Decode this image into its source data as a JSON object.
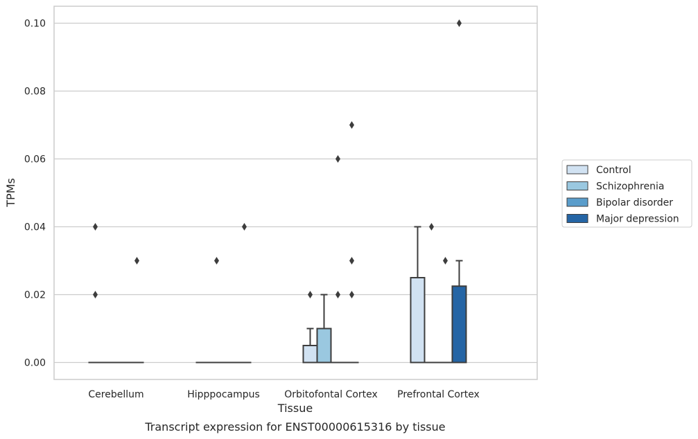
{
  "chart_data": {
    "type": "box",
    "title": "",
    "caption": "Transcript expression for ENST00000615316 by tissue",
    "xlabel": "Tissue",
    "ylabel": "TPMs",
    "ylim": [
      -0.005,
      0.105
    ],
    "yticks": [
      "0.00",
      "0.02",
      "0.04",
      "0.06",
      "0.08",
      "0.10"
    ],
    "ytick_values": [
      0,
      0.02,
      0.04,
      0.06,
      0.08,
      0.1
    ],
    "grid": true,
    "legend_position": "right",
    "categories": [
      "Cerebellum",
      "Hipppocampus",
      "Orbitofontal Cortex",
      "Prefrontal Cortex"
    ],
    "series": [
      {
        "name": "Control",
        "color": "#d1e2f2",
        "boxes": [
          {
            "q1": 0,
            "median": 0,
            "q3": 0,
            "whisker_low": 0,
            "whisker_high": 0,
            "outliers": [
              0.02,
              0.04
            ]
          },
          {
            "q1": 0,
            "median": 0,
            "q3": 0,
            "whisker_low": 0,
            "whisker_high": 0,
            "outliers": []
          },
          {
            "q1": 0,
            "median": 0,
            "q3": 0.005,
            "whisker_low": 0,
            "whisker_high": 0.01,
            "outliers": [
              0.02
            ]
          },
          {
            "q1": 0,
            "median": 0,
            "q3": 0.025,
            "whisker_low": 0,
            "whisker_high": 0.04,
            "outliers": []
          }
        ]
      },
      {
        "name": "Schizophrenia",
        "color": "#9ac8e0",
        "boxes": [
          {
            "q1": 0,
            "median": 0,
            "q3": 0,
            "whisker_low": 0,
            "whisker_high": 0,
            "outliers": []
          },
          {
            "q1": 0,
            "median": 0,
            "q3": 0,
            "whisker_low": 0,
            "whisker_high": 0,
            "outliers": [
              0.03
            ]
          },
          {
            "q1": 0,
            "median": 0,
            "q3": 0.01,
            "whisker_low": 0,
            "whisker_high": 0.02,
            "outliers": []
          },
          {
            "q1": 0,
            "median": 0,
            "q3": 0,
            "whisker_low": 0,
            "whisker_high": 0,
            "outliers": [
              0.04
            ]
          }
        ]
      },
      {
        "name": "Bipolar disorder",
        "color": "#5a9dcb",
        "boxes": [
          {
            "q1": 0,
            "median": 0,
            "q3": 0,
            "whisker_low": 0,
            "whisker_high": 0,
            "outliers": []
          },
          {
            "q1": 0,
            "median": 0,
            "q3": 0,
            "whisker_low": 0,
            "whisker_high": 0,
            "outliers": []
          },
          {
            "q1": 0,
            "median": 0,
            "q3": 0,
            "whisker_low": 0,
            "whisker_high": 0,
            "outliers": [
              0.02,
              0.06
            ]
          },
          {
            "q1": 0,
            "median": 0,
            "q3": 0,
            "whisker_low": 0,
            "whisker_high": 0,
            "outliers": [
              0.03
            ]
          }
        ]
      },
      {
        "name": "Major depression",
        "color": "#2565a5",
        "boxes": [
          {
            "q1": 0,
            "median": 0,
            "q3": 0,
            "whisker_low": 0,
            "whisker_high": 0,
            "outliers": [
              0.03
            ]
          },
          {
            "q1": 0,
            "median": 0,
            "q3": 0,
            "whisker_low": 0,
            "whisker_high": 0,
            "outliers": [
              0.04
            ]
          },
          {
            "q1": 0,
            "median": 0,
            "q3": 0,
            "whisker_low": 0,
            "whisker_high": 0,
            "outliers": [
              0.02,
              0.03,
              0.07
            ]
          },
          {
            "q1": 0,
            "median": 0,
            "q3": 0.0225,
            "whisker_low": 0,
            "whisker_high": 0.03,
            "outliers": [
              0.1
            ]
          }
        ]
      }
    ]
  },
  "colors": {
    "grid": "#cccccc",
    "frame": "#cccccc",
    "box_edge": "#3d3d3d",
    "outlier": "#3d3d3d"
  }
}
